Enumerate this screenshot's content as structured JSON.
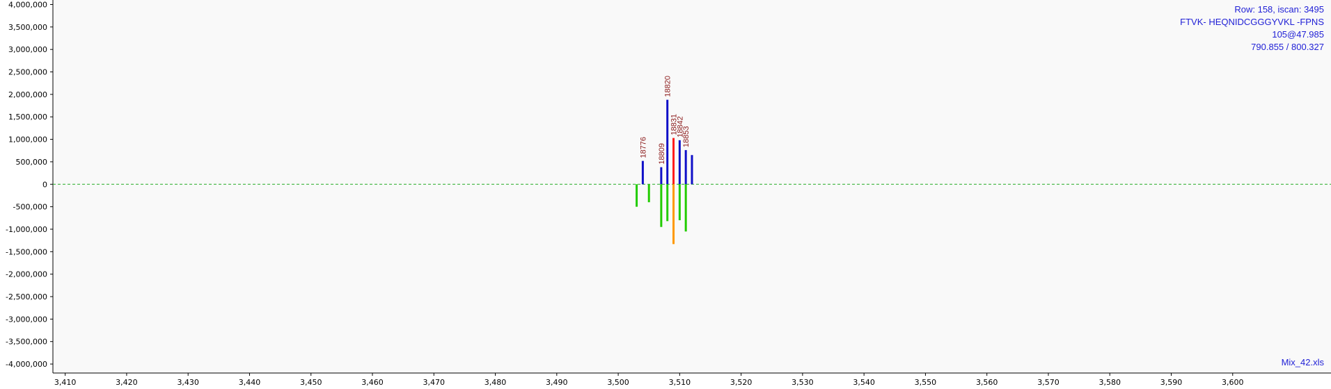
{
  "chart_data": {
    "type": "bar",
    "title": "",
    "xlabel": "",
    "ylabel": "",
    "xlim": [
      3408,
      3616
    ],
    "ylim": [
      -4200000,
      4100000
    ],
    "x_ticks": [
      3410,
      3420,
      3430,
      3440,
      3450,
      3460,
      3470,
      3480,
      3490,
      3500,
      3510,
      3520,
      3530,
      3540,
      3550,
      3560,
      3570,
      3580,
      3590,
      3600
    ],
    "y_ticks": [
      4000000,
      3500000,
      3000000,
      2500000,
      2000000,
      1500000,
      1000000,
      500000,
      0,
      -500000,
      -1000000,
      -1500000,
      -2000000,
      -2500000,
      -3000000,
      -3500000,
      -4000000
    ],
    "zero_line": {
      "style": "dashed",
      "color": "#22aa22"
    },
    "grid": false,
    "series": [
      {
        "color": "#1010c8",
        "points": [
          {
            "x": 3504.0,
            "y": 520000,
            "label": "18776"
          },
          {
            "x": 3507.0,
            "y": 380000,
            "label": "18809"
          },
          {
            "x": 3508.0,
            "y": 1880000,
            "label": "18820"
          },
          {
            "x": 3510.0,
            "y": 980000,
            "label": "18842"
          },
          {
            "x": 3511.0,
            "y": 760000,
            "label": "18853"
          },
          {
            "x": 3512.0,
            "y": 650000,
            "label": ""
          }
        ]
      },
      {
        "color": "#ff1a1a",
        "points": [
          {
            "x": 3509.0,
            "y": 1030000,
            "label": "18831"
          }
        ]
      },
      {
        "color": "#22cc00",
        "points": [
          {
            "x": 3503.0,
            "y": -500000
          },
          {
            "x": 3505.0,
            "y": -400000
          },
          {
            "x": 3507.0,
            "y": -950000
          },
          {
            "x": 3508.0,
            "y": -820000
          },
          {
            "x": 3510.0,
            "y": -800000
          },
          {
            "x": 3511.0,
            "y": -1050000
          }
        ]
      },
      {
        "color": "#ff9900",
        "points": [
          {
            "x": 3509.0,
            "y": -1330000
          }
        ]
      }
    ]
  },
  "info": {
    "row": "Row: 158, iscan: 3495",
    "peptide": "FTVK- HEQNIDCGGGYVKL -FPNS",
    "charge_rt": "105@47.985",
    "mz": "790.855 / 800.327",
    "file": "Mix_42.xls"
  }
}
